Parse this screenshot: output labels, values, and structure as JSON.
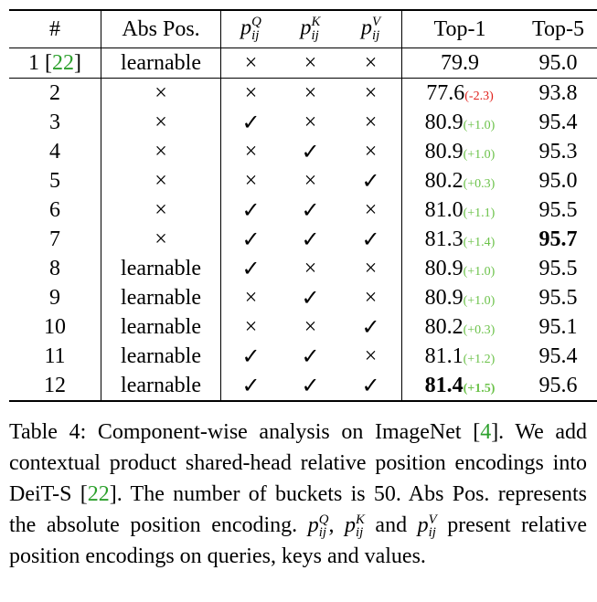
{
  "table": {
    "header": [
      "#",
      "Abs Pos.",
      {
        "math": {
          "base": "p",
          "sub": "ij",
          "sup": "Q"
        }
      },
      {
        "math": {
          "base": "p",
          "sub": "ij",
          "sup": "K"
        }
      },
      {
        "math": {
          "base": "p",
          "sub": "ij",
          "sup": "V"
        }
      },
      "Top-1",
      "Top-5"
    ],
    "rows": [
      [
        [
          {
            "t": "1 ["
          },
          {
            "t": "22",
            "cite": true
          },
          {
            "t": "]"
          }
        ],
        "learnable",
        "×",
        "×",
        "×",
        {
          "value": "79.9"
        },
        {
          "value": "95.0"
        }
      ],
      [
        "2",
        "×",
        "×",
        "×",
        "×",
        {
          "value": "77.6",
          "delta": "(-2.3)",
          "delta_color": "#e0201b"
        },
        {
          "value": "93.8"
        }
      ],
      [
        "3",
        "×",
        "✓",
        "×",
        "×",
        {
          "value": "80.9",
          "delta": "(+1.0)",
          "delta_color": "#6cc24a"
        },
        {
          "value": "95.4"
        }
      ],
      [
        "4",
        "×",
        "×",
        "✓",
        "×",
        {
          "value": "80.9",
          "delta": "(+1.0)",
          "delta_color": "#6cc24a"
        },
        {
          "value": "95.3"
        }
      ],
      [
        "5",
        "×",
        "×",
        "×",
        "✓",
        {
          "value": "80.2",
          "delta": "(+0.3)",
          "delta_color": "#6cc24a"
        },
        {
          "value": "95.0"
        }
      ],
      [
        "6",
        "×",
        "✓",
        "✓",
        "×",
        {
          "value": "81.0",
          "delta": "(+1.1)",
          "delta_color": "#6cc24a"
        },
        {
          "value": "95.5"
        }
      ],
      [
        "7",
        "×",
        "✓",
        "✓",
        "✓",
        {
          "value": "81.3",
          "delta": "(+1.4)",
          "delta_color": "#6cc24a"
        },
        {
          "value": "95.7",
          "bold": true
        }
      ],
      [
        "8",
        "learnable",
        "✓",
        "×",
        "×",
        {
          "value": "80.9",
          "delta": "(+1.0)",
          "delta_color": "#6cc24a"
        },
        {
          "value": "95.5"
        }
      ],
      [
        "9",
        "learnable",
        "×",
        "✓",
        "×",
        {
          "value": "80.9",
          "delta": "(+1.0)",
          "delta_color": "#6cc24a"
        },
        {
          "value": "95.5"
        }
      ],
      [
        "10",
        "learnable",
        "×",
        "×",
        "✓",
        {
          "value": "80.2",
          "delta": "(+0.3)",
          "delta_color": "#6cc24a"
        },
        {
          "value": "95.1"
        }
      ],
      [
        "11",
        "learnable",
        "✓",
        "✓",
        "×",
        {
          "value": "81.1",
          "delta": "(+1.2)",
          "delta_color": "#6cc24a"
        },
        {
          "value": "95.4"
        }
      ],
      [
        "12",
        "learnable",
        "✓",
        "✓",
        "✓",
        {
          "value": "81.4",
          "delta": "(+1.5)",
          "delta_color": "#6cc24a",
          "bold": true
        },
        {
          "value": "95.6"
        }
      ]
    ]
  },
  "caption": [
    {
      "t": "Table 4: Component-wise analysis on ImageNet ["
    },
    {
      "t": "4",
      "cite": true
    },
    {
      "t": "]. We add contextual product shared-head relative position encodings into DeiT-S ["
    },
    {
      "t": "22",
      "cite": true
    },
    {
      "t": "]. The number of buckets is 50. Abs Pos. represents the absolute position encoding. "
    },
    {
      "math": {
        "base": "p",
        "sub": "ij",
        "sup": "Q"
      }
    },
    {
      "t": ", "
    },
    {
      "math": {
        "base": "p",
        "sub": "ij",
        "sup": "K"
      }
    },
    {
      "t": " and "
    },
    {
      "math": {
        "base": "p",
        "sub": "ij",
        "sup": "V"
      }
    },
    {
      "t": " present relative position encodings on queries, keys and values."
    }
  ]
}
